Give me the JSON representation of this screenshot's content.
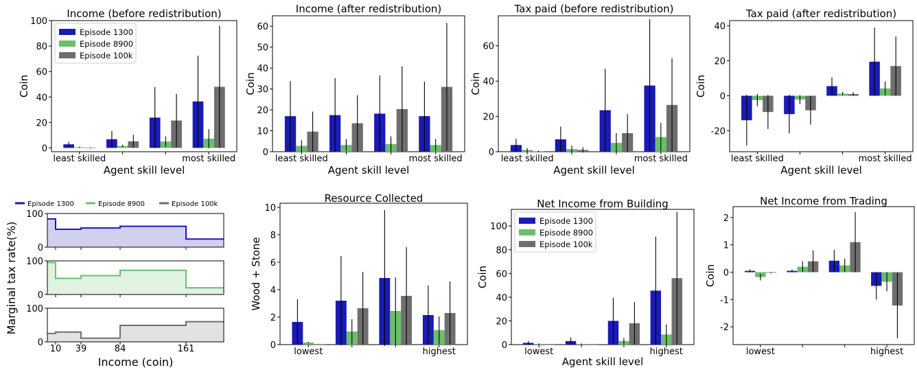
{
  "colors": {
    "episode_1300": "#1a1ab4",
    "episode_8900": "#6cbd6c",
    "episode_100k": "#6e6e6e"
  },
  "chart_data": [
    {
      "id": "income_before",
      "type": "bar",
      "title": "Income (before redistribution)",
      "xlabel": "Agent skill level",
      "ylabel": "Coin",
      "categories": [
        "least skilled",
        "",
        "",
        "most skilled"
      ],
      "ylim": [
        -3,
        100
      ],
      "yticks": [
        0,
        20,
        40,
        60,
        80,
        100
      ],
      "legend": "top-left",
      "series": [
        {
          "name": "Episode 1300",
          "values": [
            2.8,
            6.8,
            23.8,
            36.5
          ],
          "err": [
            2.0,
            6.5,
            24.0,
            36.0
          ]
        },
        {
          "name": "Episode 8900",
          "values": [
            0.5,
            1.5,
            5.0,
            7.2
          ],
          "err": [
            0.5,
            1.0,
            4.0,
            7.5
          ]
        },
        {
          "name": "Episode 100k",
          "values": [
            0.2,
            5.2,
            21.5,
            48.0
          ],
          "err": [
            0.3,
            5.0,
            21.0,
            48.0
          ]
        }
      ]
    },
    {
      "id": "income_after",
      "type": "bar",
      "title": "Income (after redistribution)",
      "xlabel": "Agent skill level",
      "ylabel": "Coin",
      "categories": [
        "least skilled",
        "",
        "",
        "most skilled"
      ],
      "ylim": [
        0,
        65
      ],
      "yticks": [
        0,
        10,
        20,
        30,
        40,
        50,
        60
      ],
      "series": [
        {
          "name": "Episode 1300",
          "values": [
            17,
            17.5,
            18.2,
            17
          ],
          "err": [
            16.7,
            17.7,
            18.3,
            16.5
          ]
        },
        {
          "name": "Episode 8900",
          "values": [
            2.8,
            3.2,
            3.7,
            3.2
          ],
          "err": [
            2.7,
            2.8,
            3.6,
            2.9
          ]
        },
        {
          "name": "Episode 100k",
          "values": [
            9.6,
            13.6,
            20.4,
            31
          ],
          "err": [
            9.6,
            13.4,
            20.4,
            30.6
          ]
        }
      ]
    },
    {
      "id": "tax_before",
      "type": "bar",
      "title": "Tax paid (before redistribution)",
      "xlabel": "Agent skill level",
      "ylabel": "Coin",
      "categories": [
        "least skilled",
        "",
        "",
        "most skilled"
      ],
      "ylim": [
        0,
        77
      ],
      "yticks": [
        0,
        20,
        40,
        60
      ],
      "series": [
        {
          "name": "Episode 1300",
          "values": [
            3.8,
            7,
            23.5,
            37.5
          ],
          "err": [
            3.5,
            7.2,
            23.5,
            37.5
          ]
        },
        {
          "name": "Episode 8900",
          "values": [
            1,
            1.5,
            5,
            8.3
          ],
          "err": [
            1,
            2,
            5.5,
            8
          ]
        },
        {
          "name": "Episode 100k",
          "values": [
            0.2,
            1,
            10.5,
            26.5
          ],
          "err": [
            0.5,
            1.5,
            10.8,
            26.5
          ]
        }
      ]
    },
    {
      "id": "tax_after",
      "type": "bar",
      "title": "Tax paid (after redistribution)",
      "xlabel": "Agent skill level",
      "ylabel": "Coin",
      "categories": [
        "least skilled",
        "",
        "",
        "most skilled"
      ],
      "ylim": [
        -32,
        43
      ],
      "yticks": [
        -20,
        0,
        20,
        40
      ],
      "series": [
        {
          "name": "Episode 1300",
          "values": [
            -14,
            -10.5,
            5.5,
            19.5
          ],
          "err": [
            14.5,
            11,
            5,
            19.5
          ]
        },
        {
          "name": "Episode 8900",
          "values": [
            -2.5,
            -2.2,
            1.2,
            4.2
          ],
          "err": [
            3.5,
            2.5,
            1,
            4
          ]
        },
        {
          "name": "Episode 100k",
          "values": [
            -9.3,
            -8.3,
            1,
            17
          ],
          "err": [
            9.7,
            8.2,
            1,
            17
          ]
        }
      ]
    },
    {
      "id": "tax_schedule",
      "type": "step",
      "xlabel": "Income (coin)",
      "ylabel": "Marginal tax rate(%)",
      "xticks": [
        10,
        39,
        84,
        161
      ],
      "yticks": [
        0,
        100
      ],
      "legend": "top",
      "bracket_edges": [
        0,
        10,
        39,
        84,
        161,
        210
      ],
      "series": [
        {
          "name": "Episode 1300",
          "rates": [
            84,
            53,
            57,
            62,
            24
          ]
        },
        {
          "name": "Episode 8900",
          "rates": [
            95,
            48,
            56,
            72,
            20
          ]
        },
        {
          "name": "Episode 100k",
          "rates": [
            25,
            29,
            11,
            49,
            60
          ]
        }
      ]
    },
    {
      "id": "resource_collected",
      "type": "bar",
      "title": "Resource Collected",
      "ylabel": "Wood + Stone",
      "categories": [
        "lowest",
        "",
        "",
        "highest"
      ],
      "ylim": [
        0,
        10.3
      ],
      "yticks": [
        0,
        2,
        4,
        6,
        8,
        10
      ],
      "series": [
        {
          "name": "Episode 1300",
          "values": [
            1.65,
            3.2,
            4.85,
            2.15
          ],
          "err": [
            1.65,
            3.25,
            4.95,
            2.15
          ]
        },
        {
          "name": "Episode 8900",
          "values": [
            0.15,
            0.95,
            2.45,
            1.05
          ],
          "err": [
            0.05,
            0.9,
            2.45,
            1
          ]
        },
        {
          "name": "Episode 100k",
          "values": [
            0,
            2.65,
            3.55,
            2.3
          ],
          "err": [
            0,
            2.65,
            3.55,
            2.3
          ]
        }
      ]
    },
    {
      "id": "net_income_building",
      "type": "bar",
      "title": "Net Income from Building",
      "xlabel": "Agent skill level",
      "ylabel": "Coin",
      "categories": [
        "lowest",
        "",
        "",
        "highest"
      ],
      "ylim": [
        0,
        114
      ],
      "yticks": [
        0,
        20,
        40,
        60,
        80,
        100
      ],
      "legend": "top-left",
      "series": [
        {
          "name": "Episode 1300",
          "values": [
            1.5,
            3,
            20,
            45.5
          ],
          "err": [
            1.5,
            3,
            19.5,
            45.5
          ]
        },
        {
          "name": "Episode 8900",
          "values": [
            0.5,
            0.5,
            3,
            8.5
          ],
          "err": [
            0.5,
            0.5,
            2.5,
            8.5
          ]
        },
        {
          "name": "Episode 100k",
          "values": [
            0,
            0,
            18,
            56
          ],
          "err": [
            0,
            0,
            18,
            56
          ]
        }
      ]
    },
    {
      "id": "net_income_trading",
      "type": "bar",
      "title": "Net Income from Trading",
      "ylabel": "Coin",
      "categories": [
        "lowest",
        "",
        "",
        "highest"
      ],
      "ylim": [
        -2.65,
        2.4
      ],
      "yticks": [
        -2,
        -1,
        0,
        1,
        2
      ],
      "series": [
        {
          "name": "Episode 1300",
          "values": [
            0.05,
            0.05,
            0.42,
            -0.5
          ],
          "err": [
            0.05,
            0.05,
            0.4,
            0.5
          ]
        },
        {
          "name": "Episode 8900",
          "values": [
            -0.18,
            0.2,
            0.25,
            -0.35
          ],
          "err": [
            0.12,
            0.2,
            0.25,
            0.35
          ]
        },
        {
          "name": "Episode 100k",
          "values": [
            -0.02,
            0.4,
            1.1,
            -1.22
          ],
          "err": [
            0.02,
            0.4,
            1.1,
            1.2
          ]
        }
      ]
    }
  ]
}
